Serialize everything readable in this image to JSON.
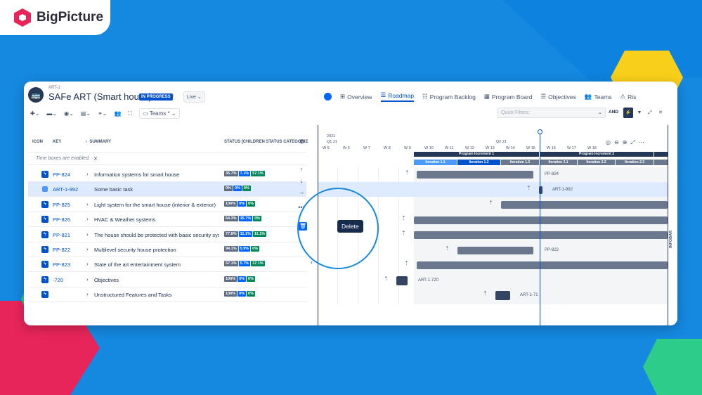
{
  "brand": {
    "name": "BigPicture"
  },
  "header": {
    "breadcrumb": "ART-1",
    "title": "SAFe ART (Smart house)",
    "status_badge": "IN PROGRESS",
    "view_mode": "Live"
  },
  "nav": {
    "items": [
      {
        "label": "Overview",
        "icon": "hierarchy-icon"
      },
      {
        "label": "Roadmap",
        "icon": "roadmap-icon",
        "active": true
      },
      {
        "label": "Program Backlog",
        "icon": "list-icon"
      },
      {
        "label": "Program Board",
        "icon": "board-icon"
      },
      {
        "label": "Objectives",
        "icon": "objectives-icon"
      },
      {
        "label": "Teams",
        "icon": "teams-icon"
      },
      {
        "label": "Ris",
        "icon": "risk-icon"
      }
    ]
  },
  "toolbar": {
    "teams_label": "Teams *",
    "quick_filters_placeholder": "Quick Filters:",
    "and_label": "AND"
  },
  "grid": {
    "columns": {
      "icon": "ICON",
      "key": "KEY",
      "summary": "SUMMARY",
      "status": "STATUS [CHILDREN STATUS CATEGORIE"
    },
    "notice": "Time boxes are enabled.",
    "rows": [
      {
        "key": "PP-824",
        "summary": "Information systems for smart house",
        "status": [
          "35.7%",
          "7.1%",
          "57.1%"
        ],
        "type": "epic"
      },
      {
        "key": "ART-1-992",
        "summary": "Some basic task",
        "status": [
          "0%",
          "0%",
          "0%"
        ],
        "type": "task",
        "selected": true
      },
      {
        "key": "PP-825",
        "summary": "Light system for the smart house (interior & exterior)",
        "status": [
          "100%",
          "0%",
          "0%"
        ],
        "type": "epic"
      },
      {
        "key": "PP-826",
        "summary": "HVAC & Weather systems",
        "status": [
          "64.3%",
          "35.7%",
          "0%"
        ],
        "type": "epic"
      },
      {
        "key": "PP-821",
        "summary": "The house should be protected with basic security syste",
        "status": [
          "77.8%",
          "11.1%",
          "11.1%"
        ],
        "type": "epic"
      },
      {
        "key": "PP-822",
        "summary": "Multilevel security house protection",
        "status": [
          "94.1%",
          "5.9%",
          "0%"
        ],
        "type": "epic"
      },
      {
        "key": "PP-823",
        "summary": "State of the art entertainment system",
        "status": [
          "57.1%",
          "5.7%",
          "37.1%"
        ],
        "type": "epic"
      },
      {
        "key": "-720",
        "summary": "Objectives",
        "status": [
          "100%",
          "0%",
          "0%"
        ],
        "type": "epic"
      },
      {
        "key": "",
        "summary": "Unstructured Features and Tasks",
        "status": [
          "100%",
          "0%",
          "0%"
        ],
        "type": "epic"
      }
    ]
  },
  "timeline": {
    "year": "2021",
    "q1": "Q1 21",
    "q2": "Q2 21",
    "weeks": [
      "W 5",
      "W 6",
      "W 7",
      "W 8",
      "W 9",
      "W 10",
      "W 11",
      "W 12",
      "W 13",
      "W 14",
      "W 15",
      "W 16",
      "W 17",
      "W 18"
    ],
    "program_increments": [
      "Program Increment 1",
      "Program Increment 2"
    ],
    "iterations": [
      "Iteration 1.1",
      "Iteration 1.2",
      "Iteration 1.3",
      "Iteration 2.1",
      "Iteration 2.2",
      "Iteration 2.3"
    ],
    "bar_labels": [
      "PP-824",
      "ART-1-992",
      "PP-822",
      "ART-1-720",
      "ART-1-71"
    ]
  },
  "context_menu": {
    "tooltip": "Delete"
  },
  "infobar": {
    "label": "INFOBAR"
  }
}
